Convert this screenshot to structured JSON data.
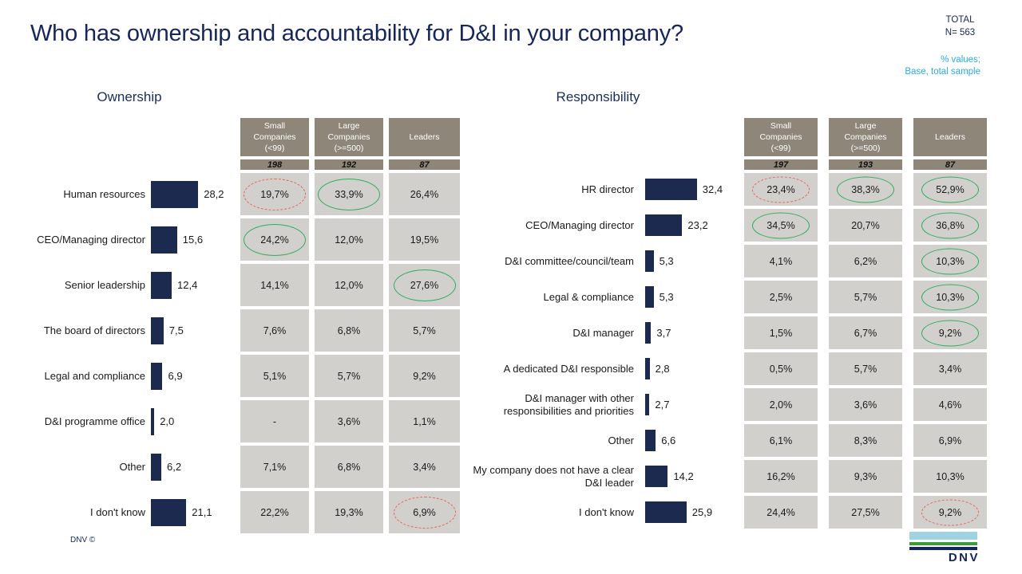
{
  "header": {
    "title": "Who has ownership and accountability for D&I in your company?",
    "total_label": "TOTAL",
    "n_label": "N= 563",
    "note_line1": "% values;",
    "note_line2": "Base, total sample"
  },
  "colors": {
    "accent_navy": "#1b2a4e",
    "header_taupe": "#8d8679",
    "cell_gray": "#d2d0cc",
    "highlight_green": "#2fad5f",
    "highlight_red_dashed": "#e8625c",
    "note_cyan": "#29abe2"
  },
  "panels": [
    {
      "title": "Ownership",
      "col_headers": [
        "Small\nCompanies\n(<99)",
        "Large\nCompanies\n(>=500)",
        "Leaders"
      ],
      "col_ns": [
        "198",
        "192",
        "87"
      ],
      "rows": [
        {
          "label": "Human resources",
          "value": "28,2",
          "cells": [
            {
              "text": "19,7%",
              "mark": "red"
            },
            {
              "text": "33,9%",
              "mark": "green"
            },
            {
              "text": "26,4%"
            }
          ]
        },
        {
          "label": "CEO/Managing director",
          "value": "15,6",
          "cells": [
            {
              "text": "24,2%",
              "mark": "green"
            },
            {
              "text": "12,0%"
            },
            {
              "text": "19,5%"
            }
          ]
        },
        {
          "label": "Senior leadership",
          "value": "12,4",
          "cells": [
            {
              "text": "14,1%"
            },
            {
              "text": "12,0%"
            },
            {
              "text": "27,6%",
              "mark": "green"
            }
          ]
        },
        {
          "label": "The board of directors",
          "value": "7,5",
          "cells": [
            {
              "text": "7,6%"
            },
            {
              "text": "6,8%"
            },
            {
              "text": "5,7%"
            }
          ]
        },
        {
          "label": "Legal and compliance",
          "value": "6,9",
          "cells": [
            {
              "text": "5,1%"
            },
            {
              "text": "5,7%"
            },
            {
              "text": "9,2%"
            }
          ]
        },
        {
          "label": "D&I programme office",
          "value": "2,0",
          "cells": [
            {
              "text": "-"
            },
            {
              "text": "3,6%"
            },
            {
              "text": "1,1%"
            }
          ]
        },
        {
          "label": "Other",
          "value": "6,2",
          "cells": [
            {
              "text": "7,1%"
            },
            {
              "text": "6,8%"
            },
            {
              "text": "3,4%"
            }
          ]
        },
        {
          "label": "I don't know",
          "value": "21,1",
          "cells": [
            {
              "text": "22,2%"
            },
            {
              "text": "19,3%"
            },
            {
              "text": "6,9%",
              "mark": "red"
            }
          ]
        }
      ]
    },
    {
      "title": "Responsibility",
      "col_headers": [
        "Small\nCompanies\n(<99)",
        "Large\nCompanies\n(>=500)",
        "Leaders"
      ],
      "col_ns": [
        "197",
        "193",
        "87"
      ],
      "rows": [
        {
          "label": "HR director",
          "value": "32,4",
          "cells": [
            {
              "text": "23,4%",
              "mark": "red"
            },
            {
              "text": "38,3%",
              "mark": "green"
            },
            {
              "text": "52,9%",
              "mark": "green"
            }
          ]
        },
        {
          "label": "CEO/Managing director",
          "value": "23,2",
          "cells": [
            {
              "text": "34,5%",
              "mark": "green"
            },
            {
              "text": "20,7%"
            },
            {
              "text": "36,8%",
              "mark": "green"
            }
          ]
        },
        {
          "label": "D&I committee/council/team",
          "value": "5,3",
          "cells": [
            {
              "text": "4,1%"
            },
            {
              "text": "6,2%"
            },
            {
              "text": "10,3%",
              "mark": "green"
            }
          ]
        },
        {
          "label": "Legal & compliance",
          "value": "5,3",
          "cells": [
            {
              "text": "2,5%"
            },
            {
              "text": "5,7%"
            },
            {
              "text": "10,3%",
              "mark": "green"
            }
          ]
        },
        {
          "label": "D&I manager",
          "value": "3,7",
          "cells": [
            {
              "text": "1,5%"
            },
            {
              "text": "6,7%"
            },
            {
              "text": "9,2%",
              "mark": "green"
            }
          ]
        },
        {
          "label": "A dedicated D&I responsible",
          "value": "2,8",
          "cells": [
            {
              "text": "0,5%"
            },
            {
              "text": "5,7%"
            },
            {
              "text": "3,4%"
            }
          ]
        },
        {
          "label": "D&I manager with other responsibilities and priorities",
          "value": "2,7",
          "cells": [
            {
              "text": "2,0%"
            },
            {
              "text": "3,6%"
            },
            {
              "text": "4,6%"
            }
          ]
        },
        {
          "label": "Other",
          "value": "6,6",
          "cells": [
            {
              "text": "6,1%"
            },
            {
              "text": "8,3%"
            },
            {
              "text": "6,9%"
            }
          ]
        },
        {
          "label": "My company does not have a clear D&I leader",
          "value": "14,2",
          "cells": [
            {
              "text": "16,2%"
            },
            {
              "text": "9,3%"
            },
            {
              "text": "10,3%"
            }
          ]
        },
        {
          "label": "I don't know",
          "value": "25,9",
          "cells": [
            {
              "text": "24,4%"
            },
            {
              "text": "27,5%"
            },
            {
              "text": "9,2%",
              "mark": "red"
            }
          ]
        }
      ]
    }
  ],
  "footer": {
    "copyright": "DNV ©",
    "logo_text": "DNV"
  },
  "chart_data": [
    {
      "type": "bar",
      "orientation": "horizontal",
      "title": "Ownership",
      "categories": [
        "Human resources",
        "CEO/Managing director",
        "Senior leadership",
        "The board of directors",
        "Legal and compliance",
        "D&I programme office",
        "Other",
        "I don't know"
      ],
      "series": [
        {
          "name": "Total (N=563)",
          "values": [
            28.2,
            15.6,
            12.4,
            7.5,
            6.9,
            2.0,
            6.2,
            21.1
          ]
        },
        {
          "name": "Small Companies (<99)",
          "n": 198,
          "values": [
            19.7,
            24.2,
            14.1,
            7.6,
            5.1,
            null,
            7.1,
            22.2
          ]
        },
        {
          "name": "Large Companies (>=500)",
          "n": 192,
          "values": [
            33.9,
            12.0,
            12.0,
            6.8,
            5.7,
            3.6,
            6.8,
            19.3
          ]
        },
        {
          "name": "Leaders",
          "n": 87,
          "values": [
            26.4,
            19.5,
            27.6,
            5.7,
            9.2,
            1.1,
            3.4,
            6.9
          ]
        }
      ],
      "annotations": {
        "circled_green": [
          [
            "Small Companies (<99)",
            "CEO/Managing director"
          ],
          [
            "Large Companies (>=500)",
            "Human resources"
          ],
          [
            "Leaders",
            "Senior leadership"
          ]
        ],
        "circled_red_dashed": [
          [
            "Small Companies (<99)",
            "Human resources"
          ],
          [
            "Leaders",
            "I don't know"
          ]
        ]
      },
      "xlabel": "",
      "ylabel": "",
      "xlim": [
        0,
        40
      ],
      "grid": false,
      "legend_position": "table-right"
    },
    {
      "type": "bar",
      "orientation": "horizontal",
      "title": "Responsibility",
      "categories": [
        "HR director",
        "CEO/Managing director",
        "D&I committee/council/team",
        "Legal & compliance",
        "D&I manager",
        "A dedicated D&I responsible",
        "D&I manager with other responsibilities and priorities",
        "Other",
        "My company does not have a clear D&I leader",
        "I don't know"
      ],
      "series": [
        {
          "name": "Total (N=563)",
          "values": [
            32.4,
            23.2,
            5.3,
            5.3,
            3.7,
            2.8,
            2.7,
            6.6,
            14.2,
            25.9
          ]
        },
        {
          "name": "Small Companies (<99)",
          "n": 197,
          "values": [
            23.4,
            34.5,
            4.1,
            2.5,
            1.5,
            0.5,
            2.0,
            6.1,
            16.2,
            24.4
          ]
        },
        {
          "name": "Large Companies (>=500)",
          "n": 193,
          "values": [
            38.3,
            20.7,
            6.2,
            5.7,
            6.7,
            5.7,
            3.6,
            8.3,
            9.3,
            27.5
          ]
        },
        {
          "name": "Leaders",
          "n": 87,
          "values": [
            52.9,
            36.8,
            10.3,
            10.3,
            9.2,
            3.4,
            4.6,
            6.9,
            10.3,
            9.2
          ]
        }
      ],
      "annotations": {
        "circled_green": [
          [
            "Small Companies (<99)",
            "CEO/Managing director"
          ],
          [
            "Large Companies (>=500)",
            "HR director"
          ],
          [
            "Leaders",
            "HR director"
          ],
          [
            "Leaders",
            "CEO/Managing director"
          ],
          [
            "Leaders",
            "D&I committee/council/team"
          ],
          [
            "Leaders",
            "Legal & compliance"
          ],
          [
            "Leaders",
            "D&I manager"
          ]
        ],
        "circled_red_dashed": [
          [
            "Small Companies (<99)",
            "HR director"
          ],
          [
            "Leaders",
            "I don't know"
          ]
        ]
      },
      "xlabel": "",
      "ylabel": "",
      "xlim": [
        0,
        60
      ],
      "grid": false,
      "legend_position": "table-right"
    }
  ]
}
